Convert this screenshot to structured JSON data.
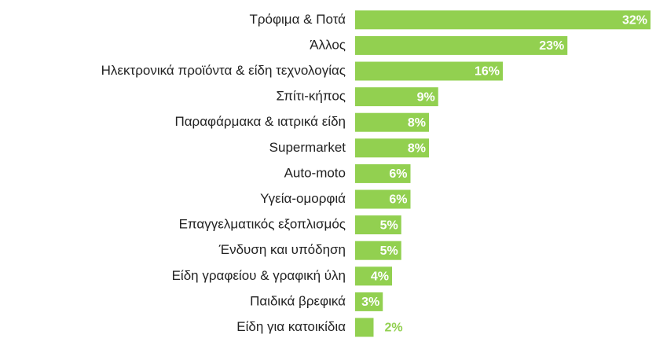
{
  "chart_data": {
    "type": "bar",
    "orientation": "horizontal",
    "color": "#92d050",
    "categories": [
      "Τρόφιμα & Ποτά",
      "Άλλος",
      "Ηλεκτρονικά προϊόντα & είδη τεχνολογίας",
      "Σπίτι-κήπος",
      "Παραφάρμακα & ιατρικά είδη",
      "Supermarket",
      "Auto-moto",
      "Υγεία-ομορφιά",
      "Επαγγελματικός εξοπλισμός",
      "Ένδυση και υπόδηση",
      "Είδη γραφείου & γραφική ύλη",
      "Παιδικά βρεφικά",
      "Είδη για κατοικίδια"
    ],
    "values": [
      32,
      23,
      16,
      9,
      8,
      8,
      6,
      6,
      5,
      5,
      4,
      3,
      2
    ],
    "value_labels": [
      "32%",
      "23%",
      "16%",
      "9%",
      "8%",
      "8%",
      "6%",
      "6%",
      "5%",
      "5%",
      "4%",
      "3%",
      "2%"
    ]
  }
}
